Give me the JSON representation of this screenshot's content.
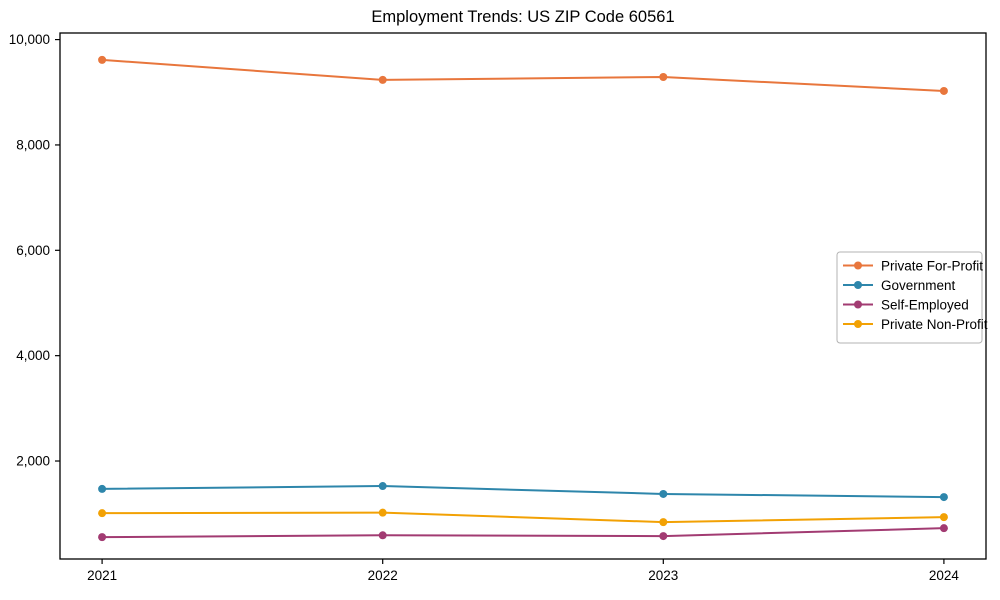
{
  "chart_data": {
    "type": "line",
    "title": "Employment Trends: US ZIP Code 60561",
    "xlabel": "",
    "ylabel": "",
    "x_categories": [
      "2021",
      "2022",
      "2023",
      "2024"
    ],
    "x_values": [
      2021,
      2022,
      2023,
      2024
    ],
    "xlim": [
      2020.85,
      2024.15
    ],
    "ylim": [
      140,
      10125
    ],
    "y_ticks": [
      2000,
      4000,
      6000,
      8000,
      10000
    ],
    "y_tick_labels": [
      "2,000",
      "4,000",
      "6,000",
      "8,000",
      "10,000"
    ],
    "grid": false,
    "legend": {
      "position": "center-right",
      "background": "#ffffff",
      "border_color": "#b3b3b3",
      "entries": [
        "Private For-Profit",
        "Government",
        "Self-Employed",
        "Private Non-Profit"
      ]
    },
    "series": [
      {
        "name": "Private For-Profit",
        "color": "#E8763C",
        "marker": "circle",
        "values": [
          9615,
          9235,
          9290,
          9025
        ]
      },
      {
        "name": "Government",
        "color": "#2E86AB",
        "marker": "circle",
        "values": [
          1470,
          1525,
          1375,
          1315
        ]
      },
      {
        "name": "Self-Employed",
        "color": "#A23B72",
        "marker": "circle",
        "values": [
          555,
          590,
          575,
          725
        ]
      },
      {
        "name": "Private Non-Profit",
        "color": "#F2A104",
        "marker": "circle",
        "values": [
          1010,
          1020,
          840,
          935
        ]
      }
    ],
    "axis_color": "#000000",
    "text_color": "#000000"
  }
}
